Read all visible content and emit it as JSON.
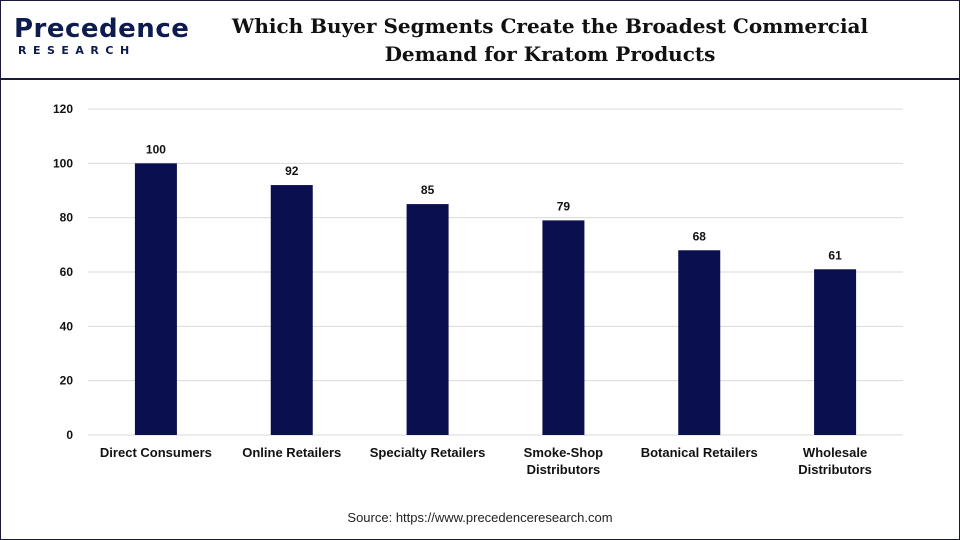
{
  "brand": {
    "logo_top": "Precedence",
    "logo_bottom": "RESEARCH"
  },
  "title": "Which Buyer Segments Create the Broadest Commercial Demand for Kratom Products",
  "source": "Source: https://www.precedenceresearch.com",
  "colors": {
    "bar": "#0a0f4f",
    "grid": "#d9d9d9",
    "text": "#111111"
  },
  "chart_data": {
    "type": "bar",
    "categories": [
      "Direct Consumers",
      "Online Retailers",
      "Specialty Retailers",
      "Smoke-Shop Distributors",
      "Botanical Retailers",
      "Wholesale Distributors"
    ],
    "category_lines": [
      [
        "Direct Consumers"
      ],
      [
        "Online Retailers"
      ],
      [
        "Specialty Retailers"
      ],
      [
        "Smoke-Shop",
        "Distributors"
      ],
      [
        "Botanical Retailers"
      ],
      [
        "Wholesale",
        "Distributors"
      ]
    ],
    "values": [
      100,
      92,
      85,
      79,
      68,
      61
    ],
    "data_labels": [
      "100",
      "92",
      "85",
      "79",
      "68",
      "61"
    ],
    "ylim": [
      0,
      120
    ],
    "yticks": [
      0,
      20,
      40,
      60,
      80,
      100,
      120
    ],
    "grid": true,
    "xlabel": "",
    "ylabel": ""
  }
}
